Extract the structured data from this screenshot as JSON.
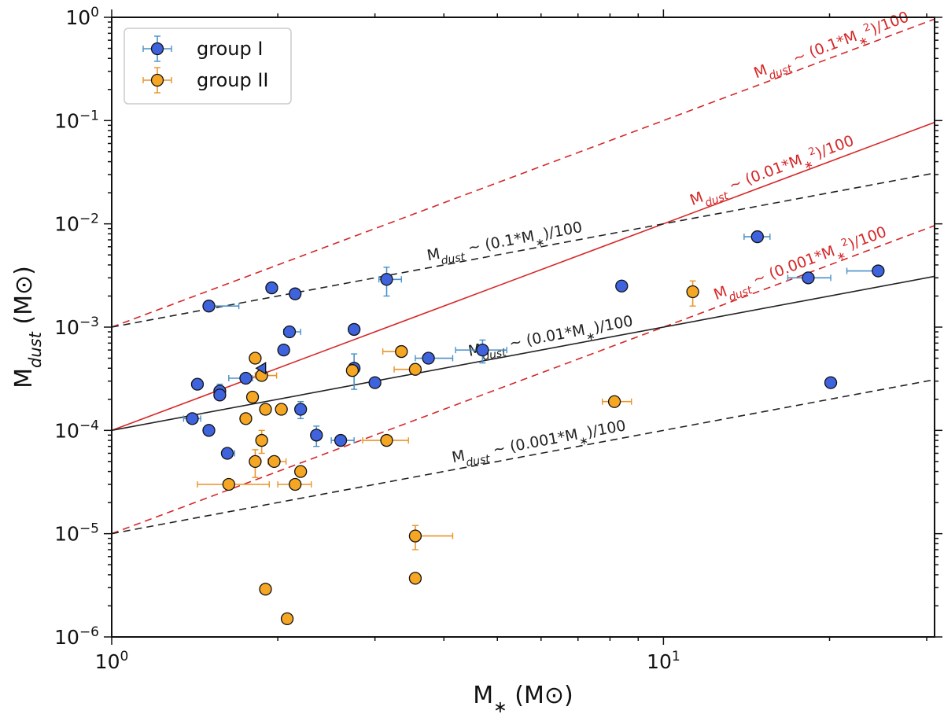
{
  "chart_data": {
    "type": "scatter",
    "xscale": "log",
    "yscale": "log",
    "xlim": [
      1,
      31
    ],
    "ylim": [
      1e-06,
      1
    ],
    "xlabel": {
      "main": "M",
      "sub": "∗",
      "unit": " (M⊙)"
    },
    "ylabel": {
      "main": "M",
      "sub": "dust",
      "unit": " (M⊙)"
    },
    "x_ticks": [
      {
        "value": 1,
        "base": "10",
        "exp": "0"
      },
      {
        "value": 10,
        "base": "10",
        "exp": "1"
      }
    ],
    "y_ticks": [
      {
        "value": 1,
        "base": "10",
        "exp": "0"
      },
      {
        "value": 0.1,
        "base": "10",
        "exp": "−1"
      },
      {
        "value": 0.01,
        "base": "10",
        "exp": "−2"
      },
      {
        "value": 0.001,
        "base": "10",
        "exp": "−3"
      },
      {
        "value": 0.0001,
        "base": "10",
        "exp": "−4"
      },
      {
        "value": 1e-05,
        "base": "10",
        "exp": "−5"
      },
      {
        "value": 1e-06,
        "base": "10",
        "exp": "−6"
      }
    ],
    "legend": {
      "position": "top-left",
      "entries": [
        {
          "label": "group I",
          "series": "group_I"
        },
        {
          "label": "group II",
          "series": "group_II"
        }
      ]
    },
    "series": [
      {
        "id": "group_I",
        "name": "group I",
        "face_color": "#3e63dd",
        "err_color": "#4a90c8",
        "points": [
          {
            "x": 1.5,
            "y": 0.0016,
            "xerr": [
              0,
              0.2
            ]
          },
          {
            "x": 1.95,
            "y": 0.0024
          },
          {
            "x": 2.15,
            "y": 0.0021
          },
          {
            "x": 2.1,
            "y": 0.0009,
            "xerr": [
              0.05,
              0.1
            ]
          },
          {
            "x": 2.05,
            "y": 0.0006
          },
          {
            "x": 2.75,
            "y": 0.00095
          },
          {
            "x": 3.15,
            "y": 0.0029,
            "xerr": [
              0.1,
              0.2
            ],
            "yerr": [
              0.0009,
              0.0009
            ]
          },
          {
            "x": 1.43,
            "y": 0.00028
          },
          {
            "x": 1.57,
            "y": 0.00024,
            "yerr": [
              4e-05,
              4e-05
            ]
          },
          {
            "x": 1.57,
            "y": 0.00022
          },
          {
            "x": 1.75,
            "y": 0.00032,
            "xerr": [
              0.12,
              0.05
            ]
          },
          {
            "x": 2.75,
            "y": 0.0004,
            "yerr": [
              0.00015,
              0.00015
            ]
          },
          {
            "x": 3.0,
            "y": 0.00029
          },
          {
            "x": 3.75,
            "y": 0.0005,
            "xerr": [
              0.2,
              0.4
            ]
          },
          {
            "x": 4.7,
            "y": 0.0006,
            "xerr": [
              0.5,
              0.5
            ],
            "yerr": [
              0.00015,
              0.00015
            ]
          },
          {
            "x": 1.4,
            "y": 0.00013,
            "xerr": [
              0.05,
              0.05
            ]
          },
          {
            "x": 1.5,
            "y": 0.0001
          },
          {
            "x": 1.62,
            "y": 6e-05,
            "xerr": [
              0,
              0.05
            ]
          },
          {
            "x": 2.2,
            "y": 0.00016,
            "yerr": [
              3e-05,
              3e-05
            ]
          },
          {
            "x": 2.35,
            "y": 9e-05,
            "yerr": [
              2e-05,
              2e-05
            ]
          },
          {
            "x": 2.6,
            "y": 8e-05,
            "xerr": [
              0.1,
              0.15
            ]
          },
          {
            "x": 8.4,
            "y": 0.0025
          },
          {
            "x": 14.8,
            "y": 0.0075,
            "xerr": [
              0.8,
              0.8
            ]
          },
          {
            "x": 18.3,
            "y": 0.003,
            "xerr": [
              1.5,
              1.8
            ]
          },
          {
            "x": 24.5,
            "y": 0.0035,
            "xerr": [
              3,
              0
            ]
          },
          {
            "x": 20.1,
            "y": 0.00029
          }
        ]
      },
      {
        "id": "group_II",
        "name": "group II",
        "face_color": "#f5a623",
        "err_color": "#e8942a",
        "points": [
          {
            "x": 1.82,
            "y": 0.0005
          },
          {
            "x": 1.87,
            "y": 0.00034,
            "xerr": [
              0.05,
              0.12
            ]
          },
          {
            "x": 1.8,
            "y": 0.00021
          },
          {
            "x": 1.75,
            "y": 0.00013
          },
          {
            "x": 1.9,
            "y": 0.00016
          },
          {
            "x": 2.03,
            "y": 0.00016
          },
          {
            "x": 1.87,
            "y": 8e-05,
            "yerr": [
              2e-05,
              2e-05
            ]
          },
          {
            "x": 1.82,
            "y": 5e-05,
            "yerr": [
              1.5e-05,
              1.5e-05
            ]
          },
          {
            "x": 1.97,
            "y": 5e-05,
            "xerr": [
              0.05,
              0.1
            ]
          },
          {
            "x": 2.2,
            "y": 4e-05
          },
          {
            "x": 2.15,
            "y": 3e-05,
            "xerr": [
              0.15,
              0.15
            ]
          },
          {
            "x": 1.63,
            "y": 3e-05,
            "xerr": [
              0.2,
              0.3
            ]
          },
          {
            "x": 2.73,
            "y": 0.00038
          },
          {
            "x": 3.35,
            "y": 0.00058,
            "xerr": [
              0.25,
              0
            ]
          },
          {
            "x": 3.55,
            "y": 0.00039,
            "xerr": [
              0.3,
              0
            ]
          },
          {
            "x": 3.15,
            "y": 8e-05,
            "xerr": [
              0.3,
              0.3
            ]
          },
          {
            "x": 3.55,
            "y": 9.5e-06,
            "xerr": [
              0,
              0.6
            ],
            "yerr": [
              2.5e-06,
              2.5e-06
            ]
          },
          {
            "x": 3.55,
            "y": 3.7e-06
          },
          {
            "x": 1.9,
            "y": 2.9e-06
          },
          {
            "x": 2.08,
            "y": 1.5e-06
          },
          {
            "x": 8.15,
            "y": 0.00019,
            "xerr": [
              0.4,
              0.6
            ]
          },
          {
            "x": 11.3,
            "y": 0.0022,
            "yerr": [
              0.0006,
              0.0006
            ]
          }
        ]
      }
    ],
    "lines": [
      {
        "id": "r1",
        "coef": 0.001,
        "power": 2,
        "color": "#d62728",
        "dash": true,
        "label_main": "M",
        "label_sub": "dust",
        "label_rest": " ~ (0.1*M",
        "label_rest_sub": "∗",
        "label_rest_sup": "2",
        "label_end": ")/100",
        "label_x": 20.5
      },
      {
        "id": "r2",
        "coef": 0.0001,
        "power": 2,
        "color": "#d62728",
        "dash": false,
        "label_main": "M",
        "label_sub": "dust",
        "label_rest": " ~ (0.01*M",
        "label_rest_sub": "∗",
        "label_rest_sup": "2",
        "label_end": ")/100",
        "label_x": 16.0
      },
      {
        "id": "r3",
        "coef": 1e-05,
        "power": 2,
        "color": "#d62728",
        "dash": true,
        "label_main": "M",
        "label_sub": "dust",
        "label_rest": " ~ (0.001*M",
        "label_rest_sub": "∗",
        "label_rest_sup": "2",
        "label_end": ")/100",
        "label_x": 18.0
      },
      {
        "id": "b1",
        "coef": 0.001,
        "power": 1,
        "color": "#222222",
        "dash": true,
        "label_main": "M",
        "label_sub": "dust",
        "label_rest": " ~ (0.1*M",
        "label_rest_sub": "∗",
        "label_rest_sup": "",
        "label_end": ")/100",
        "label_x": 5.2
      },
      {
        "id": "b2",
        "coef": 0.0001,
        "power": 1,
        "color": "#222222",
        "dash": false,
        "label_main": "M",
        "label_sub": "dust",
        "label_rest": " ~ (0.01*M",
        "label_rest_sub": "∗",
        "label_rest_sup": "",
        "label_end": ")/100",
        "label_x": 6.3
      },
      {
        "id": "b3",
        "coef": 1e-05,
        "power": 1,
        "color": "#222222",
        "dash": true,
        "label_main": "M",
        "label_sub": "dust",
        "label_rest": " ~ (0.001*M",
        "label_rest_sub": "∗",
        "label_rest_sup": "",
        "label_end": ")/100",
        "label_x": 6.0
      }
    ],
    "markers": [
      {
        "shape": "triangle-left",
        "x": 1.87,
        "y": 0.0004,
        "color": "#3e63dd"
      }
    ]
  }
}
